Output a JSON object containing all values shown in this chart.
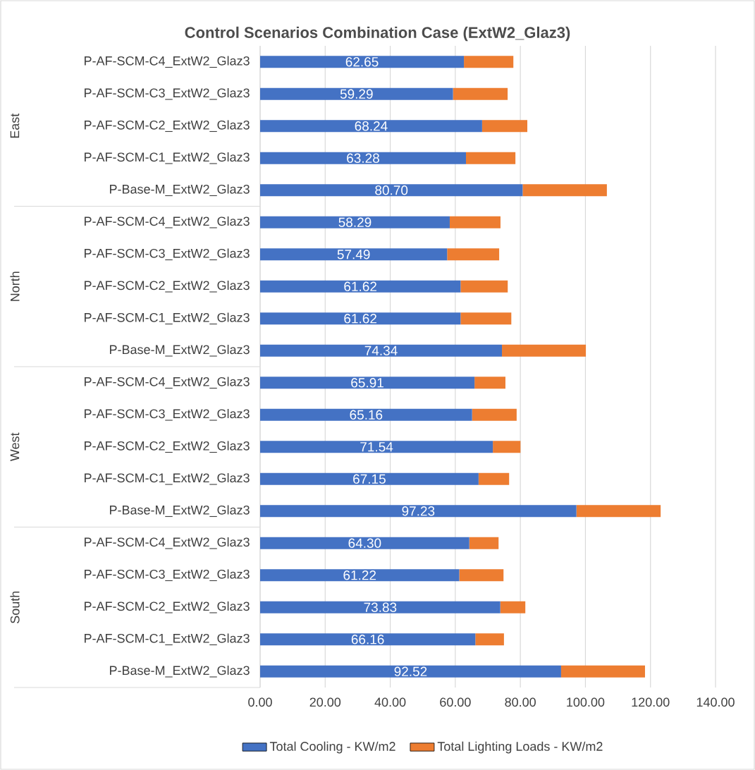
{
  "chart_data": {
    "type": "bar",
    "orientation": "horizontal",
    "stacked": true,
    "title": "Control Scenarios Combination Case (ExtW2_Glaz3)",
    "categories": [
      "P-AF-SCM-C4_ExtW2_Glaz3",
      "P-AF-SCM-C3_ExtW2_Glaz3",
      "P-AF-SCM-C2_ExtW2_Glaz3",
      "P-AF-SCM-C1_ExtW2_Glaz3",
      "P-Base-M_ExtW2_Glaz3",
      "P-AF-SCM-C4_ExtW2_Glaz3",
      "P-AF-SCM-C3_ExtW2_Glaz3",
      "P-AF-SCM-C2_ExtW2_Glaz3",
      "P-AF-SCM-C1_ExtW2_Glaz3",
      "P-Base-M_ExtW2_Glaz3",
      "P-AF-SCM-C4_ExtW2_Glaz3",
      "P-AF-SCM-C3_ExtW2_Glaz3",
      "P-AF-SCM-C2_ExtW2_Glaz3",
      "P-AF-SCM-C1_ExtW2_Glaz3",
      "P-Base-M_ExtW2_Glaz3",
      "P-AF-SCM-C4_ExtW2_Glaz3",
      "P-AF-SCM-C3_ExtW2_Glaz3",
      "P-AF-SCM-C2_ExtW2_Glaz3",
      "P-AF-SCM-C1_ExtW2_Glaz3",
      "P-Base-M_ExtW2_Glaz3"
    ],
    "annotations": [
      "East",
      "North",
      "West",
      "South"
    ],
    "series": [
      {
        "name": "Total Cooling - KW/m2",
        "color": "#4472c4",
        "values": [
          62.65,
          59.29,
          68.24,
          63.28,
          80.7,
          58.29,
          57.49,
          61.62,
          61.62,
          74.34,
          65.91,
          65.16,
          71.54,
          67.15,
          97.23,
          64.3,
          61.22,
          73.83,
          66.16,
          92.52
        ],
        "value_labels": [
          "62.65",
          "59.29",
          "68.24",
          "63.28",
          "80.70",
          "58.29",
          "57.49",
          "61.62",
          "61.62",
          "74.34",
          "65.91",
          "65.16",
          "71.54",
          "67.15",
          "97.23",
          "64.30",
          "61.22",
          "73.83",
          "66.16",
          "92.52"
        ]
      },
      {
        "name": "Total Lighting Loads - KW/m2",
        "color": "#ed7d31",
        "values": [
          15.2,
          16.8,
          13.9,
          15.2,
          25.9,
          15.6,
          16.0,
          14.5,
          15.6,
          25.8,
          9.5,
          13.7,
          8.5,
          9.4,
          25.9,
          9.0,
          13.6,
          7.7,
          8.8,
          25.8
        ]
      }
    ],
    "xlim": [
      0,
      140
    ],
    "xticks": [
      {
        "value": 0,
        "label": "0.00"
      },
      {
        "value": 20,
        "label": "20.00"
      },
      {
        "value": 40,
        "label": "40.00"
      },
      {
        "value": 60,
        "label": "60.00"
      },
      {
        "value": 80,
        "label": "80.00"
      },
      {
        "value": 100,
        "label": "100.00"
      },
      {
        "value": 120,
        "label": "120.00"
      },
      {
        "value": 140,
        "label": "140.00"
      }
    ],
    "grid": "x",
    "legend": "bottom"
  }
}
